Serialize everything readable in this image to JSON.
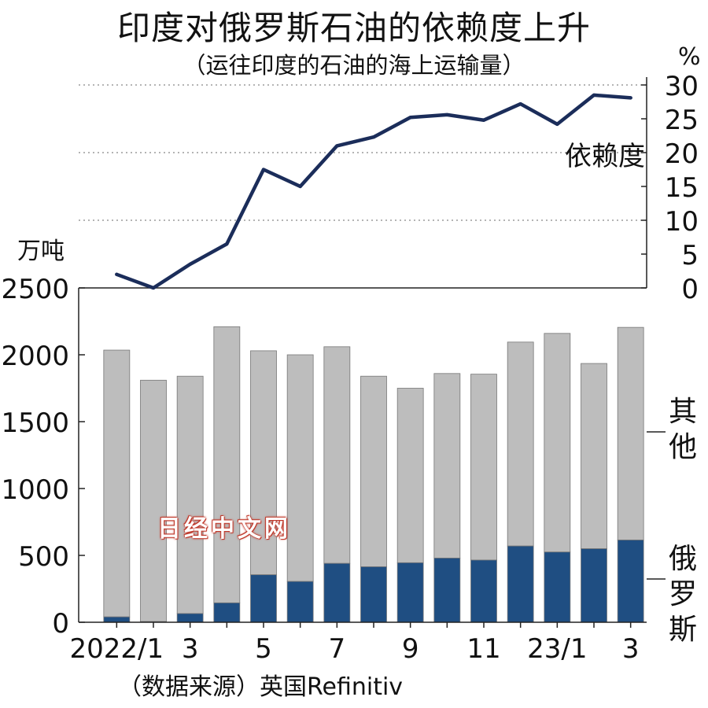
{
  "title": "印度对俄罗斯石油的依赖度上升",
  "subtitle": "（运往印度的石油的海上运输量）",
  "source": "（数据来源）英国Refinitiv",
  "watermark": "日经中文网",
  "colors": {
    "russia": "#1f4e82",
    "other": "#bdbdbd",
    "line": "#1b2d5a",
    "grid": "#888888"
  },
  "chart_data": [
    {
      "type": "bar",
      "stacked": true,
      "ylabel": "万吨",
      "ylim": [
        0,
        2500
      ],
      "yticks": [
        0,
        500,
        1000,
        1500,
        2000,
        2500
      ],
      "x_tick_labels": [
        "2022/1",
        "",
        "3",
        "",
        "5",
        "",
        "7",
        "",
        "9",
        "",
        "11",
        "",
        "23/1",
        "",
        "3"
      ],
      "series": [
        {
          "name": "俄罗斯",
          "values": [
            40,
            5,
            65,
            145,
            355,
            305,
            440,
            415,
            445,
            480,
            465,
            570,
            525,
            550,
            615
          ]
        },
        {
          "name": "其他",
          "values": [
            1995,
            1805,
            1775,
            2065,
            1675,
            1695,
            1620,
            1425,
            1305,
            1380,
            1390,
            1525,
            1635,
            1385,
            1590
          ]
        }
      ],
      "totals": [
        2035,
        1810,
        1840,
        2210,
        2030,
        2000,
        2060,
        1840,
        1750,
        1860,
        1855,
        2095,
        2160,
        1935,
        2205
      ]
    },
    {
      "type": "line",
      "ylabel": "%",
      "ylim": [
        0,
        30
      ],
      "yticks": [
        0,
        5,
        10,
        15,
        20,
        25,
        30
      ],
      "grid": true,
      "series": [
        {
          "name": "依赖度",
          "values": [
            2,
            0,
            3.5,
            6.5,
            17.5,
            15,
            21,
            22.3,
            25.2,
            25.6,
            24.8,
            27.2,
            24.2,
            28.5,
            28.1
          ]
        }
      ]
    }
  ]
}
